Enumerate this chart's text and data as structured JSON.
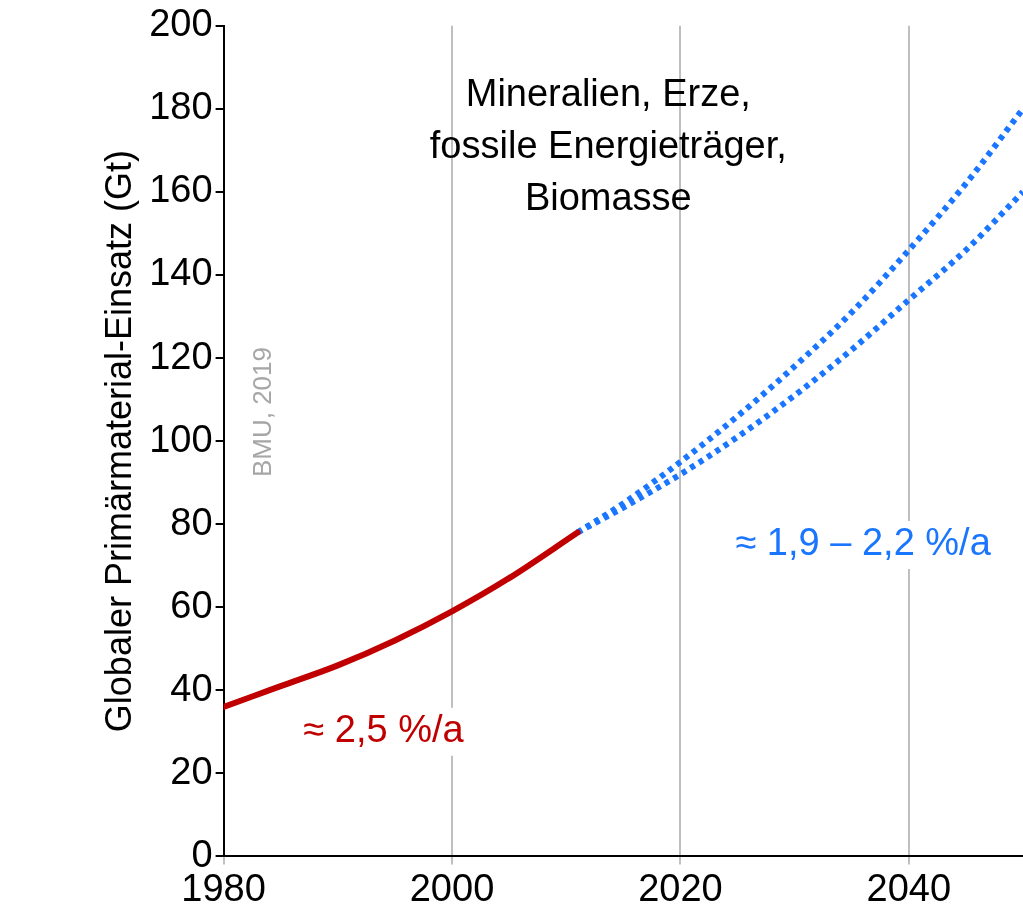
{
  "chart_data": {
    "type": "line",
    "ylabel": "Globaler Primärmaterial-Einsatz (Gt)",
    "xlim": [
      1980,
      2050
    ],
    "xticks": [
      1980,
      2000,
      2020,
      2040
    ],
    "ylim": [
      0,
      200
    ],
    "yticks": [
      0,
      20,
      40,
      60,
      80,
      100,
      120,
      140,
      160,
      180,
      200
    ],
    "grid": "x",
    "legend": false,
    "marker": "none",
    "series": [
      {
        "color": "#c00000",
        "line_style": "solid",
        "x": [
          1980,
          1985,
          1990,
          1995,
          2000,
          2005,
          2011
        ],
        "values": [
          36,
          41,
          46,
          52,
          59,
          67,
          78
        ]
      },
      {
        "color": "#1a75ff",
        "line_style": "dotted",
        "x": [
          2011,
          2015,
          2020,
          2025,
          2030,
          2035,
          2040,
          2045,
          2050
        ],
        "values": [
          78,
          85,
          95,
          106,
          118,
          131,
          146,
          162,
          180
        ]
      },
      {
        "color": "#1a75ff",
        "line_style": "dotted",
        "x": [
          2011,
          2015,
          2020,
          2025,
          2030,
          2035,
          2040,
          2045,
          2050
        ],
        "values": [
          78,
          84,
          92,
          101,
          111,
          122,
          134,
          146,
          160
        ]
      }
    ],
    "annotations": [
      "Mineralien, Erze,\nfossile Energieträger,\nBiomasse",
      "≈ 2,5 %/a",
      "≈ 1,9 – 2,2 %/a",
      "BMU, 2019"
    ]
  }
}
